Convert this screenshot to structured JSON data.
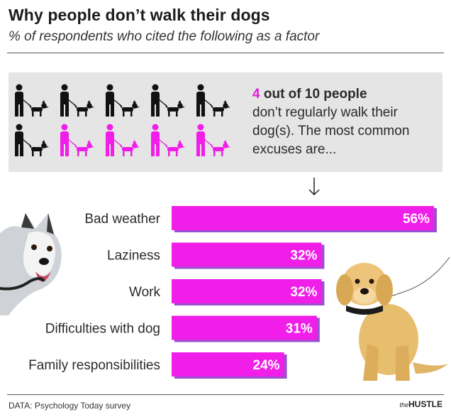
{
  "title": "Why people don’t walk their dogs",
  "subtitle": "% of respondents who cited the following as a factor",
  "panel": {
    "highlight_num": "4",
    "highlight_rest": " out of 10 people",
    "body": "don’t regularly walk their dog(s). The most common excuses are...",
    "people_total": 10,
    "people_highlighted": 4,
    "colors": {
      "walker": "#111111",
      "highlight": "#f01ee8"
    }
  },
  "chart_data": {
    "type": "bar",
    "orientation": "horizontal",
    "categories": [
      "Bad weather",
      "Laziness",
      "Work",
      "Difficulties with dog",
      "Family responsibilities"
    ],
    "values": [
      56,
      32,
      32,
      31,
      24
    ],
    "labels": [
      "56%",
      "32%",
      "32%",
      "31%",
      "24%"
    ],
    "xlim": [
      0,
      56
    ],
    "bar_color": "#f01ee8",
    "shadow_color": "#8f3cc9"
  },
  "footer": {
    "source": "DATA: Psychology Today survey",
    "brand_the": "the",
    "brand_name": "HUSTLE"
  }
}
